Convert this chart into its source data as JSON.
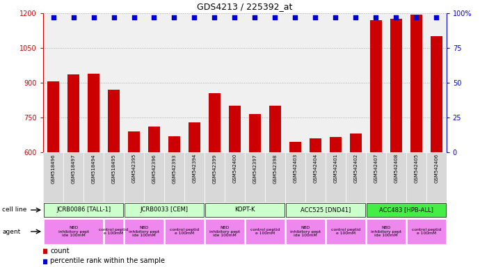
{
  "title": "GDS4213 / 225392_at",
  "samples": [
    "GSM518496",
    "GSM518497",
    "GSM518494",
    "GSM518495",
    "GSM542395",
    "GSM542396",
    "GSM542393",
    "GSM542394",
    "GSM542399",
    "GSM542400",
    "GSM542397",
    "GSM542398",
    "GSM542403",
    "GSM542404",
    "GSM542401",
    "GSM542402",
    "GSM542407",
    "GSM542408",
    "GSM542405",
    "GSM542406"
  ],
  "counts": [
    905,
    935,
    940,
    870,
    690,
    710,
    670,
    730,
    855,
    800,
    765,
    800,
    645,
    660,
    665,
    680,
    1170,
    1175,
    1195,
    1100
  ],
  "percentile_ranks": [
    97,
    97,
    97,
    97,
    97,
    97,
    97,
    97,
    97,
    97,
    97,
    97,
    97,
    97,
    97,
    97,
    97,
    97,
    97,
    97
  ],
  "bar_color": "#cc0000",
  "dot_color": "#0000cc",
  "ylim_left": [
    600,
    1200
  ],
  "ylim_right": [
    0,
    100
  ],
  "yticks_left": [
    600,
    750,
    900,
    1050,
    1200
  ],
  "yticks_right": [
    0,
    25,
    50,
    75,
    100
  ],
  "cell_lines": [
    {
      "label": "JCRB0086 [TALL-1]",
      "start": 0,
      "end": 4,
      "color": "#ccffcc"
    },
    {
      "label": "JCRB0033 [CEM]",
      "start": 4,
      "end": 8,
      "color": "#ccffcc"
    },
    {
      "label": "KOPT-K",
      "start": 8,
      "end": 12,
      "color": "#ccffcc"
    },
    {
      "label": "ACC525 [DND41]",
      "start": 12,
      "end": 16,
      "color": "#ccffcc"
    },
    {
      "label": "ACC483 [HPB-ALL]",
      "start": 16,
      "end": 20,
      "color": "#44ee44"
    }
  ],
  "agents": [
    {
      "label": "NBD\ninhibitory pept\nide 100mM",
      "start": 0,
      "end": 3,
      "color": "#ee88ee"
    },
    {
      "label": "control peptid\ne 100mM",
      "start": 3,
      "end": 4,
      "color": "#ee88ee"
    },
    {
      "label": "NBD\ninhibitory pept\nide 100mM",
      "start": 4,
      "end": 6,
      "color": "#ee88ee"
    },
    {
      "label": "control peptid\ne 100mM",
      "start": 6,
      "end": 8,
      "color": "#ee88ee"
    },
    {
      "label": "NBD\ninhibitory pept\nide 100mM",
      "start": 8,
      "end": 10,
      "color": "#ee88ee"
    },
    {
      "label": "control peptid\ne 100mM",
      "start": 10,
      "end": 12,
      "color": "#ee88ee"
    },
    {
      "label": "NBD\ninhibitory pept\nide 100mM",
      "start": 12,
      "end": 14,
      "color": "#ee88ee"
    },
    {
      "label": "control peptid\ne 100mM",
      "start": 14,
      "end": 16,
      "color": "#ee88ee"
    },
    {
      "label": "NBD\ninhibitory pept\nide 100mM",
      "start": 16,
      "end": 18,
      "color": "#ee88ee"
    },
    {
      "label": "control peptid\ne 100mM",
      "start": 18,
      "end": 20,
      "color": "#ee88ee"
    }
  ],
  "grid_color": "#aaaaaa",
  "background_color": "#ffffff",
  "plot_bg_color": "#f0f0f0"
}
